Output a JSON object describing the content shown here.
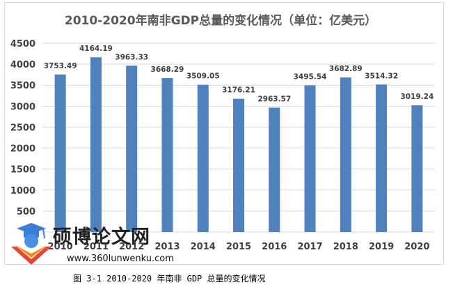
{
  "chart_data": {
    "type": "bar",
    "title": "2010-2020年南非GDP总量的变化情况（单位：亿美元）",
    "categories": [
      "2010",
      "2011",
      "2012",
      "2013",
      "2014",
      "2015",
      "2016",
      "2017",
      "2018",
      "2019",
      "2020"
    ],
    "values": [
      3753.49,
      4164.19,
      3963.33,
      3668.29,
      3509.05,
      3176.21,
      2963.57,
      3495.54,
      3682.89,
      3514.32,
      3019.24
    ],
    "data_labels": [
      "3753.49",
      "4164.19",
      "3963.33",
      "3668.29",
      "3509.05",
      "3176.21",
      "2963.57",
      "3495.54",
      "3682.89",
      "3514.32",
      "3019.24"
    ],
    "y_ticks": [
      500,
      1000,
      1500,
      2000,
      2500,
      3000,
      3500,
      4000,
      4500
    ],
    "ylim": [
      0,
      4500
    ],
    "grid": true,
    "legend": "none",
    "bar_color": "#4f81bd",
    "xlabel": "",
    "ylabel": ""
  },
  "caption": "图 3-1 2010-2020 年南非 GDP 总量的变化情况",
  "watermark": {
    "text": "硕博论文网",
    "url": "www.360lunwenku.com"
  }
}
